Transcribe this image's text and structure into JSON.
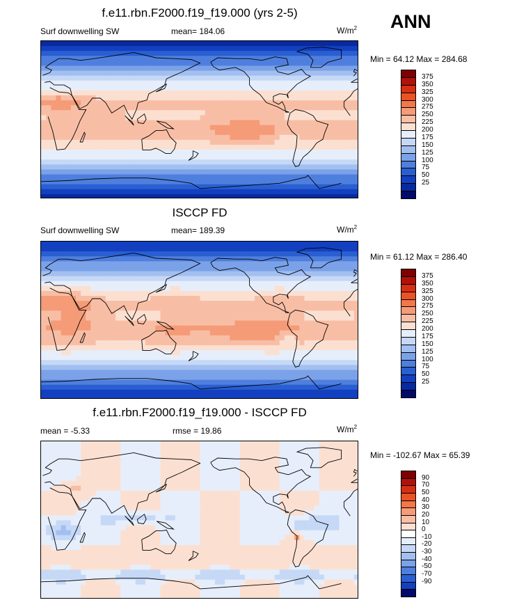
{
  "season_label": "ANN",
  "units_base": "W/m",
  "units_exp": "2",
  "panels": [
    {
      "title": "f.e11.rbn.F2000.f19_f19.000 (yrs 2-5)",
      "left_label": "Surf downwelling SW",
      "center_label": "mean= 184.06",
      "minmax": "Min =  64.12 Max = 284.68",
      "legend": [
        "375",
        "350",
        "325",
        "300",
        "275",
        "250",
        "225",
        "200",
        "175",
        "150",
        "125",
        "100",
        "75",
        "50",
        "25"
      ]
    },
    {
      "title": "ISCCP FD",
      "left_label": "Surf downwelling SW",
      "center_label": "mean= 189.39",
      "minmax": "Min =  61.12 Max = 286.40",
      "legend": [
        "375",
        "350",
        "325",
        "300",
        "275",
        "250",
        "225",
        "200",
        "175",
        "150",
        "125",
        "100",
        "75",
        "50",
        "25"
      ]
    },
    {
      "title": "f.e11.rbn.F2000.f19_f19.000 - ISCCP FD",
      "left_label": "mean =  -5.33",
      "center_label": "rmse =  19.86",
      "minmax": "Min = -102.67 Max =  65.39",
      "legend": [
        "90",
        "70",
        "50",
        "40",
        "30",
        "20",
        "10",
        "0",
        "-10",
        "-20",
        "-30",
        "-40",
        "-50",
        "-70",
        "-90"
      ]
    }
  ],
  "colors": {
    "abs_scale": [
      "#7f0000",
      "#b2110a",
      "#d62f14",
      "#ea5325",
      "#f2774a",
      "#f59b77",
      "#f8bea5",
      "#fbe0d2",
      "#e6eefb",
      "#c5d8f6",
      "#a2bff0",
      "#7ba2e8",
      "#4f7fde",
      "#2a5fd2",
      "#1340c0",
      "#082aa0",
      "#020a6a"
    ],
    "diff_scale": [
      "#7f0000",
      "#b2110a",
      "#d62f14",
      "#ea5325",
      "#f2774a",
      "#f59b77",
      "#f8bea5",
      "#fbe0d2",
      "#ffffff",
      "#e6eefb",
      "#c5d8f6",
      "#a2bff0",
      "#7ba2e8",
      "#4f7fde",
      "#2a5fd2",
      "#1340c0",
      "#020a6a"
    ]
  }
}
